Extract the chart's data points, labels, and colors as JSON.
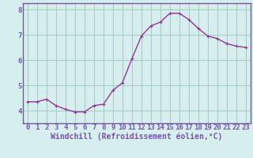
{
  "x": [
    0,
    1,
    2,
    3,
    4,
    5,
    6,
    7,
    8,
    9,
    10,
    11,
    12,
    13,
    14,
    15,
    16,
    17,
    18,
    19,
    20,
    21,
    22,
    23
  ],
  "y": [
    4.35,
    4.35,
    4.45,
    4.2,
    4.05,
    3.95,
    3.95,
    4.2,
    4.25,
    4.8,
    5.1,
    6.05,
    6.95,
    7.35,
    7.5,
    7.85,
    7.85,
    7.6,
    7.25,
    6.95,
    6.85,
    6.65,
    6.55,
    6.5
  ],
  "line_color": "#993399",
  "marker": "+",
  "marker_size": 3,
  "bg_color": "#d6eeee",
  "grid_color": "#aacccc",
  "xlabel": "Windchill (Refroidissement éolien,°C)",
  "ylim": [
    3.5,
    8.25
  ],
  "xlim": [
    -0.5,
    23.5
  ],
  "yticks": [
    4,
    5,
    6,
    7,
    8
  ],
  "xtick_labels": [
    "0",
    "1",
    "2",
    "3",
    "4",
    "5",
    "6",
    "7",
    "8",
    "9",
    "10",
    "11",
    "12",
    "13",
    "14",
    "15",
    "16",
    "17",
    "18",
    "19",
    "20",
    "21",
    "22",
    "23"
  ],
  "spine_color": "#7755aa",
  "tick_color": "#7755aa",
  "label_color": "#7755aa",
  "font_size": 6.5,
  "xlabel_fontsize": 7.0,
  "linewidth": 1.0,
  "markeredgewidth": 0.8
}
